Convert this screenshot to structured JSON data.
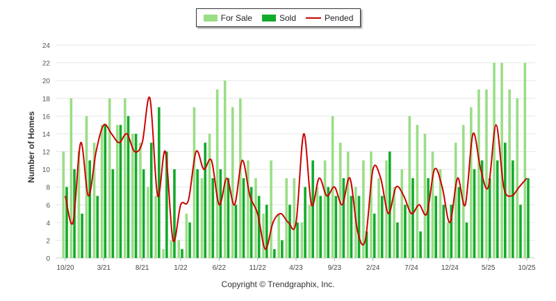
{
  "legend": {
    "for_sale": "For Sale",
    "sold": "Sold",
    "pended": "Pended"
  },
  "copyright": "Copyright © Trendgraphix, Inc.",
  "colors": {
    "for_sale": "#9ade86",
    "sold": "#13aa2b",
    "pended": "#cc0000",
    "grid": "#e6e6e6"
  },
  "chart_data": {
    "type": "bar",
    "title": "",
    "xlabel": "",
    "ylabel": "Number of Homes",
    "ylim": [
      0,
      24
    ],
    "yticks": [
      0,
      2,
      4,
      6,
      8,
      10,
      12,
      14,
      16,
      18,
      20,
      22,
      24
    ],
    "grid": true,
    "legend_position": "top-center",
    "x_tick_labels": [
      "10/20",
      "3/21",
      "8/21",
      "1/22",
      "6/22",
      "11/22",
      "4/23",
      "9/23",
      "2/24",
      "7/24",
      "12/24",
      "5/25",
      "10/25"
    ],
    "x_tick_every": 5,
    "months": 61,
    "series": [
      {
        "name": "For Sale",
        "type": "bar",
        "values": [
          12,
          18,
          12,
          16,
          13,
          15,
          18,
          15,
          18,
          14,
          13,
          8,
          7,
          1,
          2,
          2,
          5,
          17,
          9,
          14,
          19,
          20,
          17,
          18,
          11,
          9,
          5,
          11,
          5,
          9,
          9,
          4,
          6,
          8,
          11,
          16,
          13,
          12,
          8,
          11,
          12,
          9,
          11,
          8,
          10,
          16,
          15,
          14,
          12,
          10,
          4,
          13,
          15,
          17,
          19,
          19,
          22,
          22,
          19,
          18,
          22
        ]
      },
      {
        "name": "Sold",
        "type": "bar",
        "values": [
          8,
          10,
          5,
          11,
          7,
          15,
          10,
          15,
          16,
          14,
          10,
          13,
          17,
          12,
          10,
          1,
          4,
          10,
          13,
          9,
          10,
          9,
          6,
          9,
          8,
          7,
          6,
          1,
          2,
          6,
          4,
          8,
          11,
          7,
          8,
          7,
          9,
          7,
          7,
          3,
          5,
          7,
          12,
          4,
          6,
          9,
          3,
          9,
          7,
          6,
          6,
          8,
          4,
          10,
          11,
          9,
          11,
          13,
          11,
          6,
          9
        ]
      },
      {
        "name": "Pended",
        "type": "line",
        "values": [
          7,
          4,
          13,
          7,
          12,
          15,
          14,
          13,
          14,
          12,
          13,
          18,
          7,
          12,
          2,
          6,
          6.5,
          12,
          10,
          11,
          6,
          9,
          6,
          11,
          7,
          5,
          1,
          4,
          5,
          4,
          4,
          14,
          6,
          9,
          7,
          8,
          6,
          9,
          3,
          2,
          10,
          9,
          5,
          8,
          7,
          5,
          6,
          5,
          10,
          8,
          4,
          9,
          6,
          14,
          10,
          8,
          15,
          8,
          7,
          8,
          9
        ]
      }
    ]
  }
}
